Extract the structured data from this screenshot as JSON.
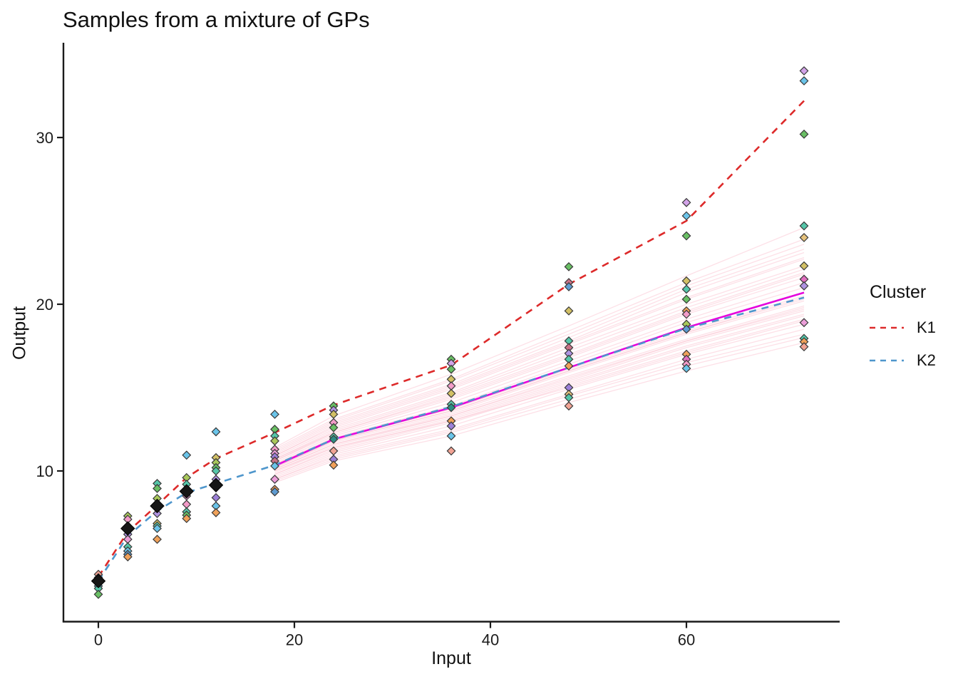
{
  "chart_data": {
    "type": "line+scatter",
    "title": "Samples from a mixture of GPs",
    "xlabel": "Input",
    "ylabel": "Output",
    "x_ticks": [
      0,
      20,
      40,
      60
    ],
    "y_ticks": [
      10,
      20,
      30
    ],
    "x_axis_range": [
      -3.5,
      76
    ],
    "y_axis_range": [
      1,
      35.8
    ],
    "grid": false,
    "legend": {
      "title": "Cluster",
      "position": "right",
      "entries": [
        {
          "label": "K1",
          "color": "#dd2a2a",
          "style": "dashed"
        },
        {
          "label": "K2",
          "color": "#4e96cc",
          "style": "dashed"
        }
      ]
    },
    "cluster_lines": {
      "x": [
        0,
        3,
        6,
        9,
        12,
        18,
        24,
        36,
        48,
        60,
        72
      ],
      "K1": [
        3.65,
        6.35,
        7.95,
        9.6,
        10.75,
        12.3,
        13.95,
        16.35,
        21.2,
        25.0,
        32.2
      ],
      "K2": [
        3.4,
        6.1,
        7.6,
        8.7,
        9.25,
        10.35,
        11.9,
        13.85,
        16.2,
        18.55,
        20.4
      ]
    },
    "mean_line": {
      "x": [
        18,
        24,
        36,
        48,
        60,
        72
      ],
      "y": [
        10.3,
        11.9,
        13.8,
        16.2,
        18.6,
        20.7
      ],
      "color": "#e504dc"
    },
    "sample_lines": {
      "x": [
        18,
        24,
        36,
        48,
        60,
        72
      ],
      "color": "#f9aebf",
      "opacity": 0.38,
      "series": [
        [
          10.2,
          11.8,
          13.6,
          16.0,
          18.3,
          20.3
        ],
        [
          10.6,
          12.3,
          14.4,
          16.9,
          19.5,
          21.8
        ],
        [
          9.8,
          11.2,
          13.0,
          15.2,
          17.4,
          19.3
        ],
        [
          10.9,
          12.6,
          14.9,
          17.6,
          20.3,
          22.7
        ],
        [
          10.4,
          12.0,
          13.9,
          16.4,
          18.9,
          21.0
        ],
        [
          9.5,
          10.9,
          12.5,
          14.6,
          16.7,
          18.5
        ],
        [
          11.2,
          13.0,
          15.4,
          18.2,
          21.1,
          23.6
        ],
        [
          10.1,
          11.6,
          13.4,
          15.7,
          17.9,
          19.9
        ],
        [
          10.7,
          12.4,
          14.6,
          17.2,
          19.8,
          22.1
        ],
        [
          9.9,
          11.4,
          13.2,
          15.4,
          17.7,
          19.6
        ],
        [
          10.3,
          11.9,
          13.8,
          16.2,
          18.6,
          20.7
        ],
        [
          11.0,
          12.8,
          15.1,
          17.8,
          20.7,
          23.1
        ],
        [
          9.6,
          11.0,
          12.7,
          14.9,
          17.0,
          18.8
        ],
        [
          10.5,
          12.1,
          14.1,
          16.6,
          19.1,
          21.3
        ],
        [
          10.0,
          11.5,
          13.3,
          15.5,
          17.8,
          19.7
        ],
        [
          11.4,
          13.3,
          15.8,
          18.7,
          21.7,
          24.6
        ],
        [
          9.4,
          10.7,
          12.3,
          14.3,
          16.3,
          18.0
        ],
        [
          10.8,
          12.5,
          14.7,
          17.4,
          20.0,
          22.3
        ],
        [
          10.2,
          11.7,
          13.5,
          15.9,
          18.2,
          20.2
        ],
        [
          9.7,
          11.1,
          12.9,
          15.1,
          17.2,
          19.1
        ],
        [
          10.6,
          12.2,
          14.3,
          16.8,
          19.4,
          21.6
        ],
        [
          11.1,
          12.9,
          15.2,
          18.0,
          20.9,
          23.3
        ],
        [
          9.3,
          10.6,
          12.1,
          14.1,
          16.0,
          17.7
        ],
        [
          10.4,
          11.9,
          13.7,
          16.1,
          18.4,
          20.5
        ],
        [
          10.9,
          12.7,
          15.0,
          17.7,
          20.4,
          22.8
        ],
        [
          9.8,
          11.3,
          13.1,
          15.3,
          17.5,
          19.4
        ],
        [
          10.3,
          11.8,
          13.6,
          16.0,
          18.3,
          20.4
        ],
        [
          11.3,
          13.1,
          15.5,
          18.4,
          21.3,
          23.9
        ],
        [
          9.5,
          10.8,
          12.4,
          14.5,
          16.5,
          18.2
        ],
        [
          10.7,
          12.3,
          14.5,
          17.0,
          19.6,
          21.9
        ],
        [
          10.1,
          11.6,
          13.3,
          15.6,
          17.8,
          19.8
        ],
        [
          10.0,
          11.4,
          13.0,
          15.0,
          17.1,
          19.0
        ]
      ]
    },
    "scatter": [
      {
        "x": 0,
        "points": [
          {
            "y": 3.8,
            "c": "salmon"
          },
          {
            "y": 3.6,
            "c": "plum"
          },
          {
            "y": 3.45,
            "c": "orchid"
          },
          {
            "y": 3.1,
            "c": "skyblue"
          },
          {
            "y": 2.95,
            "c": "teal"
          },
          {
            "y": 2.6,
            "c": "green"
          }
        ]
      },
      {
        "x": 3,
        "points": [
          {
            "y": 7.3,
            "c": "olive"
          },
          {
            "y": 7.1,
            "c": "pink"
          },
          {
            "y": 6.2,
            "c": "violet"
          },
          {
            "y": 5.9,
            "c": "orchid"
          },
          {
            "y": 5.45,
            "c": "teal"
          },
          {
            "y": 5.2,
            "c": "skyblue"
          },
          {
            "y": 5.0,
            "c": "steelblue"
          },
          {
            "y": 4.85,
            "c": "orange"
          }
        ]
      },
      {
        "x": 6,
        "points": [
          {
            "y": 9.25,
            "c": "teal"
          },
          {
            "y": 8.95,
            "c": "green"
          },
          {
            "y": 8.35,
            "c": "olive"
          },
          {
            "y": 7.8,
            "c": "orchid"
          },
          {
            "y": 7.45,
            "c": "violet"
          },
          {
            "y": 6.85,
            "c": "khaki"
          },
          {
            "y": 6.7,
            "c": "teal"
          },
          {
            "y": 6.55,
            "c": "skyblue"
          },
          {
            "y": 5.9,
            "c": "orange"
          }
        ]
      },
      {
        "x": 9,
        "points": [
          {
            "y": 10.95,
            "c": "skyblue"
          },
          {
            "y": 9.6,
            "c": "olive"
          },
          {
            "y": 9.2,
            "c": "teal"
          },
          {
            "y": 8.75,
            "c": "green"
          },
          {
            "y": 8.5,
            "c": "orchid"
          },
          {
            "y": 8.0,
            "c": "pink"
          },
          {
            "y": 7.55,
            "c": "teal"
          },
          {
            "y": 7.35,
            "c": "green"
          },
          {
            "y": 7.15,
            "c": "orange"
          }
        ]
      },
      {
        "x": 12,
        "points": [
          {
            "y": 12.35,
            "c": "skyblue"
          },
          {
            "y": 10.8,
            "c": "khaki"
          },
          {
            "y": 10.5,
            "c": "olive"
          },
          {
            "y": 10.2,
            "c": "green"
          },
          {
            "y": 10.0,
            "c": "teal"
          },
          {
            "y": 9.5,
            "c": "violet"
          },
          {
            "y": 8.4,
            "c": "purple"
          },
          {
            "y": 7.9,
            "c": "skyblue"
          },
          {
            "y": 7.5,
            "c": "orange"
          }
        ]
      },
      {
        "x": 18,
        "points": [
          {
            "y": 13.4,
            "c": "skyblue"
          },
          {
            "y": 12.5,
            "c": "green"
          },
          {
            "y": 12.1,
            "c": "teal"
          },
          {
            "y": 11.8,
            "c": "olive"
          },
          {
            "y": 11.3,
            "c": "pink"
          },
          {
            "y": 11.05,
            "c": "orchid"
          },
          {
            "y": 10.85,
            "c": "purple"
          },
          {
            "y": 10.6,
            "c": "rose"
          },
          {
            "y": 10.3,
            "c": "skyblue"
          },
          {
            "y": 9.5,
            "c": "orchid"
          },
          {
            "y": 8.9,
            "c": "orange"
          },
          {
            "y": 8.75,
            "c": "steelblue"
          }
        ]
      },
      {
        "x": 24,
        "points": [
          {
            "y": 13.9,
            "c": "green"
          },
          {
            "y": 13.65,
            "c": "violet"
          },
          {
            "y": 13.4,
            "c": "khaki"
          },
          {
            "y": 12.9,
            "c": "pink"
          },
          {
            "y": 12.6,
            "c": "green"
          },
          {
            "y": 12.05,
            "c": "teal"
          },
          {
            "y": 11.9,
            "c": "darkteal"
          },
          {
            "y": 11.2,
            "c": "salmon"
          },
          {
            "y": 10.7,
            "c": "purple"
          },
          {
            "y": 10.35,
            "c": "orange"
          }
        ]
      },
      {
        "x": 36,
        "points": [
          {
            "y": 16.7,
            "c": "green"
          },
          {
            "y": 16.45,
            "c": "plum"
          },
          {
            "y": 16.1,
            "c": "green"
          },
          {
            "y": 15.5,
            "c": "khaki"
          },
          {
            "y": 15.1,
            "c": "pink"
          },
          {
            "y": 14.65,
            "c": "khaki"
          },
          {
            "y": 14.0,
            "c": "teal"
          },
          {
            "y": 13.8,
            "c": "darkteal"
          },
          {
            "y": 13.0,
            "c": "orange"
          },
          {
            "y": 12.7,
            "c": "purple"
          },
          {
            "y": 12.1,
            "c": "skyblue"
          },
          {
            "y": 11.2,
            "c": "salmon"
          }
        ]
      },
      {
        "x": 48,
        "points": [
          {
            "y": 22.25,
            "c": "green"
          },
          {
            "y": 21.3,
            "c": "rose"
          },
          {
            "y": 21.05,
            "c": "steelblue"
          },
          {
            "y": 19.6,
            "c": "khaki"
          },
          {
            "y": 17.8,
            "c": "teal"
          },
          {
            "y": 17.4,
            "c": "rose"
          },
          {
            "y": 17.05,
            "c": "violet"
          },
          {
            "y": 16.7,
            "c": "teal"
          },
          {
            "y": 16.3,
            "c": "orange"
          },
          {
            "y": 15.0,
            "c": "purple"
          },
          {
            "y": 14.6,
            "c": "sandy"
          },
          {
            "y": 14.4,
            "c": "teal"
          },
          {
            "y": 13.9,
            "c": "salmon"
          }
        ]
      },
      {
        "x": 60,
        "points": [
          {
            "y": 26.1,
            "c": "plum"
          },
          {
            "y": 25.3,
            "c": "skyblue"
          },
          {
            "y": 24.1,
            "c": "green"
          },
          {
            "y": 21.4,
            "c": "khaki"
          },
          {
            "y": 20.9,
            "c": "teal"
          },
          {
            "y": 20.3,
            "c": "green"
          },
          {
            "y": 19.6,
            "c": "orange"
          },
          {
            "y": 19.4,
            "c": "pink"
          },
          {
            "y": 18.8,
            "c": "olive"
          },
          {
            "y": 18.5,
            "c": "steelblue"
          },
          {
            "y": 17.0,
            "c": "orange"
          },
          {
            "y": 16.7,
            "c": "magentapt"
          },
          {
            "y": 16.4,
            "c": "pink"
          },
          {
            "y": 16.15,
            "c": "skyblue"
          }
        ]
      },
      {
        "x": 72,
        "points": [
          {
            "y": 34.0,
            "c": "plum"
          },
          {
            "y": 33.4,
            "c": "skyblue"
          },
          {
            "y": 30.2,
            "c": "green"
          },
          {
            "y": 24.7,
            "c": "teal"
          },
          {
            "y": 24.0,
            "c": "sandy"
          },
          {
            "y": 22.3,
            "c": "khaki"
          },
          {
            "y": 21.5,
            "c": "magentapt"
          },
          {
            "y": 21.1,
            "c": "violet"
          },
          {
            "y": 18.9,
            "c": "orchid"
          },
          {
            "y": 17.95,
            "c": "teal"
          },
          {
            "y": 17.75,
            "c": "orange"
          },
          {
            "y": 17.45,
            "c": "salmon"
          }
        ]
      }
    ],
    "mean_points": [
      {
        "x": 0,
        "y": 3.4
      },
      {
        "x": 3,
        "y": 6.55
      },
      {
        "x": 6,
        "y": 7.9
      },
      {
        "x": 9,
        "y": 8.78
      },
      {
        "x": 12,
        "y": 9.15
      }
    ],
    "palette": {
      "teal": "#55c6a9",
      "darkteal": "#2d8d84",
      "green": "#69bf64",
      "olive": "#a9c85b",
      "khaki": "#d2c065",
      "sandy": "#e6c27c",
      "orange": "#f0a159",
      "salmon": "#f2a394",
      "rose": "#c97287",
      "pink": "#f29bc8",
      "orchid": "#ec9ed9",
      "plum": "#d2a3e8",
      "violet": "#af93e2",
      "purple": "#9c80d8",
      "skyblue": "#6ac4e9",
      "steelblue": "#5e9bd1",
      "magentapt": "#e26fc0"
    },
    "colors": {
      "axis": "#1a1a1a",
      "tick_label": "#1c1c1c",
      "mean_point": "#161616",
      "point_border": "#3a3a3a"
    }
  }
}
